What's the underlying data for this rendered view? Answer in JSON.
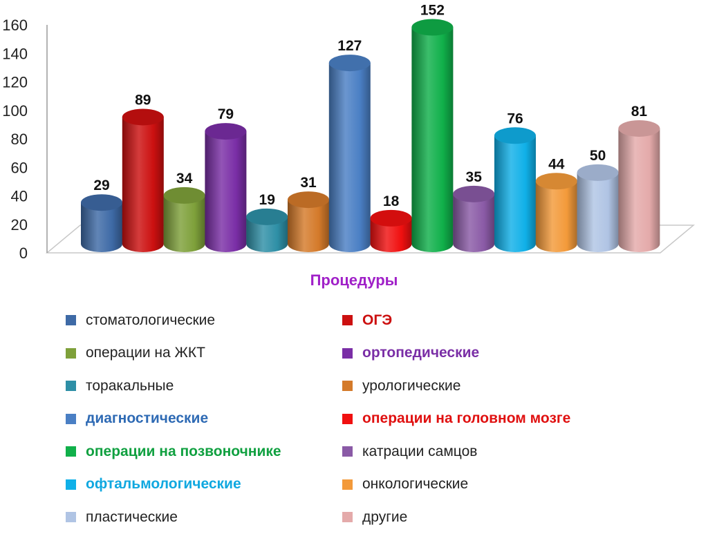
{
  "chart_data": {
    "type": "bar",
    "xlabel": "Процедуры",
    "ylabel": "",
    "ylim": [
      0,
      160
    ],
    "yticks": [
      0,
      20,
      40,
      60,
      80,
      100,
      120,
      140,
      160
    ],
    "grid": false,
    "legend_position": "bottom",
    "categories": [
      "стоматологические",
      "ОГЭ",
      "операции на ЖКТ",
      "ортопедические",
      "торакальные",
      "урологические",
      "диагностические",
      "операции на головном мозге",
      "операции на позвоночнике",
      "катрации самцов",
      "офтальмологические",
      "онкологические",
      "пластические",
      "другие"
    ],
    "values": [
      29,
      89,
      34,
      79,
      19,
      31,
      127,
      18,
      152,
      35,
      76,
      44,
      50,
      81
    ],
    "colors": [
      "#3e6aa6",
      "#cc1010",
      "#7ea03a",
      "#7a2ea6",
      "#2e8fa6",
      "#d47a2a",
      "#4a7fc4",
      "#f01010",
      "#10b04a",
      "#8a5aa6",
      "#10b0e8",
      "#f39a3a",
      "#b0c4e4",
      "#e4aaaa"
    ],
    "legend": [
      {
        "label": "стоматологические",
        "color": "#3e6aa6",
        "label_color": "#222222",
        "bold": false
      },
      {
        "label": "ОГЭ",
        "color": "#cc1010",
        "label_color": "#cc1010",
        "bold": true
      },
      {
        "label": "операции на ЖКТ",
        "color": "#7ea03a",
        "label_color": "#222222",
        "bold": false
      },
      {
        "label": "ортопедические",
        "color": "#7a2ea6",
        "label_color": "#7a2ea6",
        "bold": true
      },
      {
        "label": "торакальные",
        "color": "#2e8fa6",
        "label_color": "#222222",
        "bold": false
      },
      {
        "label": "урологические",
        "color": "#d47a2a",
        "label_color": "#222222",
        "bold": false
      },
      {
        "label": "диагностические",
        "color": "#4a7fc4",
        "label_color": "#2e6ab4",
        "bold": true
      },
      {
        "label": "операции на головном мозге",
        "color": "#f01010",
        "label_color": "#e01010",
        "bold": true
      },
      {
        "label": "операции на позвоночнике",
        "color": "#10b04a",
        "label_color": "#10a040",
        "bold": true
      },
      {
        "label": "катрации самцов",
        "color": "#8a5aa6",
        "label_color": "#222222",
        "bold": false
      },
      {
        "label": "офтальмологические",
        "color": "#10b0e8",
        "label_color": "#10a8e0",
        "bold": true
      },
      {
        "label": "онкологические",
        "color": "#f39a3a",
        "label_color": "#222222",
        "bold": false
      },
      {
        "label": "пластические",
        "color": "#b0c4e4",
        "label_color": "#222222",
        "bold": false
      },
      {
        "label": "другие",
        "color": "#e4aaaa",
        "label_color": "#222222",
        "bold": false
      }
    ]
  }
}
